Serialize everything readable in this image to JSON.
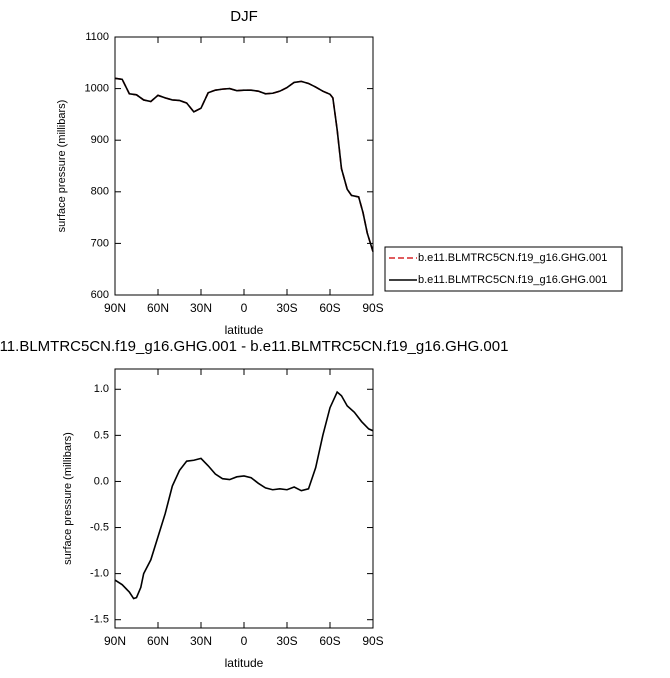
{
  "chart_data": [
    {
      "type": "line",
      "title": "DJF",
      "x_label": "latitude",
      "y_label": "surface pressure (millibars)",
      "x": [
        90,
        85,
        80,
        75,
        70,
        65,
        60,
        55,
        50,
        45,
        40,
        35,
        30,
        25,
        20,
        15,
        10,
        5,
        0,
        -5,
        -10,
        -15,
        -20,
        -25,
        -30,
        -35,
        -40,
        -45,
        -50,
        -55,
        -60,
        -62,
        -65,
        -68,
        -72,
        -75,
        -80,
        -83,
        -86,
        -90
      ],
      "series": [
        {
          "name": "b.e11.BLMTRC5CN.f19_g16.GHG.001",
          "color": "#d62728",
          "dash": "dashed",
          "values": [
            1020,
            1018,
            990,
            988,
            978,
            975,
            987,
            982,
            978,
            977,
            972,
            955,
            962,
            992,
            997,
            999,
            1000,
            996,
            997,
            997,
            995,
            990,
            991,
            995,
            1002,
            1012,
            1014,
            1010,
            1003,
            995,
            989,
            982,
            920,
            845,
            805,
            793,
            790,
            760,
            720,
            684
          ]
        },
        {
          "name": "b.e11.BLMTRC5CN.f19_g16.GHG.001",
          "color": "#000000",
          "dash": "solid",
          "values": [
            1020,
            1018,
            990,
            988,
            978,
            975,
            987,
            982,
            978,
            977,
            972,
            955,
            962,
            992,
            997,
            999,
            1000,
            996,
            997,
            997,
            995,
            990,
            991,
            995,
            1002,
            1012,
            1014,
            1010,
            1003,
            995,
            989,
            982,
            920,
            845,
            805,
            793,
            790,
            760,
            720,
            684
          ]
        }
      ],
      "xlim": [
        90,
        -90
      ],
      "xticks": [
        {
          "value": 90,
          "label": "90N"
        },
        {
          "value": 60,
          "label": "60N"
        },
        {
          "value": 30,
          "label": "30N"
        },
        0,
        {
          "value": -30,
          "label": "30S"
        },
        {
          "value": -60,
          "label": "60S"
        },
        {
          "value": -90,
          "label": "90S"
        }
      ],
      "ylim": [
        600,
        1100
      ],
      "yticks": [
        600,
        700,
        800,
        900,
        1000,
        1100
      ],
      "legend": "outside-right"
    },
    {
      "type": "line",
      "title": "11.BLMTRC5CN.f19_g16.GHG.001 - b.e11.BLMTRC5CN.f19_g16.GHG.001",
      "x_label": "latitude",
      "y_label": "surface pressure (millibars)",
      "x": [
        90,
        85,
        80,
        77,
        75,
        72,
        70,
        65,
        60,
        55,
        50,
        45,
        40,
        35,
        30,
        25,
        20,
        15,
        10,
        5,
        0,
        -5,
        -10,
        -15,
        -20,
        -25,
        -30,
        -35,
        -40,
        -45,
        -50,
        -55,
        -60,
        -65,
        -68,
        -72,
        -77,
        -82,
        -87,
        -90
      ],
      "values": [
        -1.07,
        -1.12,
        -1.2,
        -1.27,
        -1.26,
        -1.15,
        -1.0,
        -0.85,
        -0.6,
        -0.35,
        -0.05,
        0.12,
        0.22,
        0.23,
        0.25,
        0.17,
        0.08,
        0.03,
        0.02,
        0.05,
        0.06,
        0.04,
        -0.02,
        -0.07,
        -0.09,
        -0.08,
        -0.09,
        -0.06,
        -0.1,
        -0.08,
        0.15,
        0.5,
        0.8,
        0.97,
        0.93,
        0.82,
        0.75,
        0.65,
        0.57,
        0.55
      ],
      "color": "#000000",
      "xlim": [
        90,
        -90
      ],
      "xticks": [
        {
          "value": 90,
          "label": "90N"
        },
        {
          "value": 60,
          "label": "60N"
        },
        {
          "value": 30,
          "label": "30N"
        },
        0,
        {
          "value": -30,
          "label": "30S"
        },
        {
          "value": -60,
          "label": "60S"
        },
        {
          "value": -90,
          "label": "90S"
        }
      ],
      "ylim": [
        -1.59,
        1.22
      ],
      "yticks": [
        {
          "value": -1.5,
          "label": "-1.5"
        },
        {
          "value": -1,
          "label": "-1.0"
        },
        -0.5,
        {
          "value": 0,
          "label": "0.0"
        },
        0.5,
        {
          "value": 1,
          "label": "1.0"
        }
      ]
    }
  ]
}
